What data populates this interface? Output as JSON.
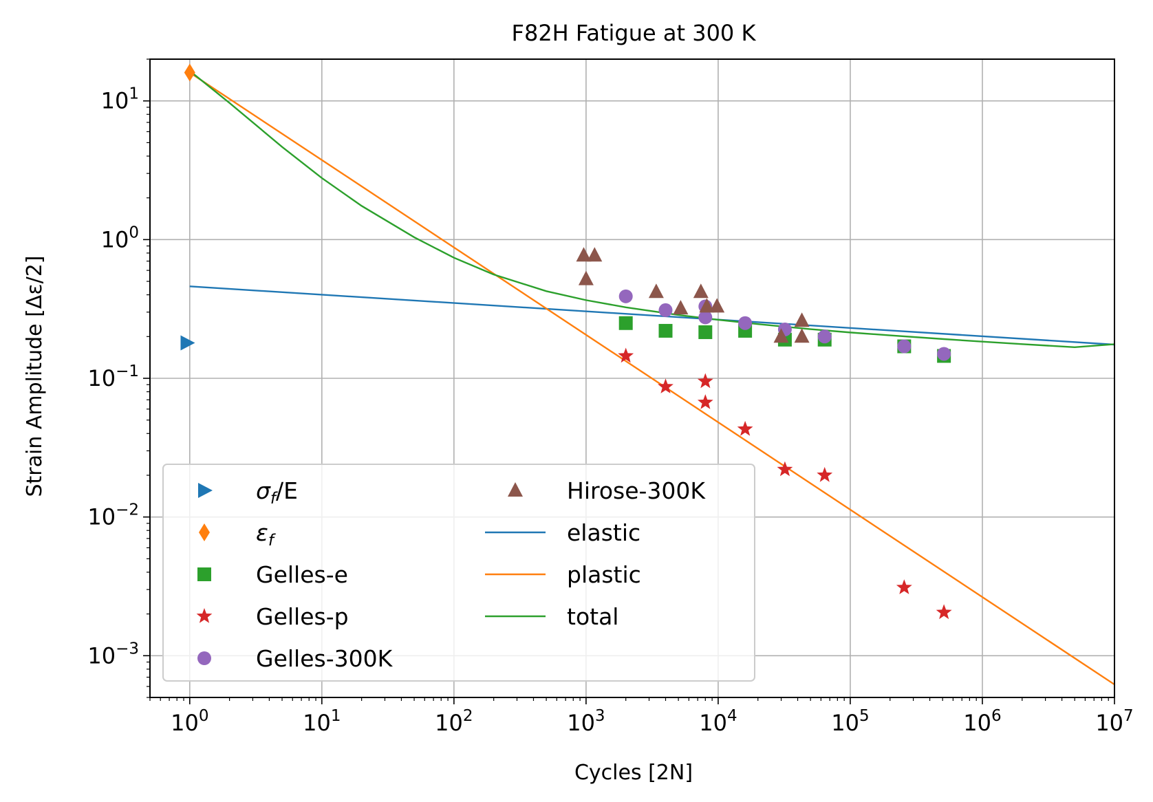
{
  "chart_data": {
    "type": "scatter",
    "title": "F82H Fatigue at 300 K",
    "xlabel": "Cycles [2N]",
    "ylabel": "Strain Amplitude [Δε/2]",
    "xscale": "log",
    "yscale": "log",
    "xlim": [
      0.5,
      10000000
    ],
    "ylim": [
      0.0005,
      20
    ],
    "grid": true,
    "legend_position": "lower-left",
    "x_ticks": [
      {
        "value": 1,
        "base": "10",
        "exp": "0"
      },
      {
        "value": 10,
        "base": "10",
        "exp": "1"
      },
      {
        "value": 100,
        "base": "10",
        "exp": "2"
      },
      {
        "value": 1000,
        "base": "10",
        "exp": "3"
      },
      {
        "value": 10000,
        "base": "10",
        "exp": "4"
      },
      {
        "value": 100000,
        "base": "10",
        "exp": "5"
      },
      {
        "value": 1000000,
        "base": "10",
        "exp": "6"
      },
      {
        "value": 10000000,
        "base": "10",
        "exp": "7"
      }
    ],
    "y_ticks": [
      {
        "value": 0.001,
        "base": "10",
        "exp": "−3"
      },
      {
        "value": 0.01,
        "base": "10",
        "exp": "−2"
      },
      {
        "value": 0.1,
        "base": "10",
        "exp": "−1"
      },
      {
        "value": 1,
        "base": "10",
        "exp": "0"
      },
      {
        "value": 10,
        "base": "10",
        "exp": "1"
      }
    ],
    "series": [
      {
        "name": "σf/E",
        "label_main": "σ",
        "label_sub": "f",
        "label_rest": "/E",
        "kind": "scatter",
        "marker": "triangle-right",
        "color": "#1f77b4",
        "x": [
          0.95
        ],
        "y": [
          0.18
        ]
      },
      {
        "name": "εf",
        "label_main": "ε",
        "label_sub": "f",
        "label_rest": "",
        "kind": "scatter",
        "marker": "diamond",
        "color": "#ff7f0e",
        "x": [
          1
        ],
        "y": [
          16
        ]
      },
      {
        "name": "Gelles-e",
        "kind": "scatter",
        "marker": "square",
        "color": "#2ca02c",
        "x": [
          2000,
          4000,
          8000,
          16000,
          32000,
          64000,
          256000,
          512000
        ],
        "y": [
          0.25,
          0.22,
          0.215,
          0.22,
          0.19,
          0.19,
          0.17,
          0.145
        ]
      },
      {
        "name": "Gelles-p",
        "kind": "scatter",
        "marker": "star",
        "color": "#d62728",
        "x": [
          2000,
          4000,
          8000,
          8000,
          16000,
          32000,
          64000,
          256000,
          512000
        ],
        "y": [
          0.145,
          0.087,
          0.095,
          0.067,
          0.043,
          0.022,
          0.02,
          0.0031,
          0.00205
        ]
      },
      {
        "name": "Gelles-300K",
        "kind": "scatter",
        "marker": "circle",
        "color": "#9467bd",
        "x": [
          2000,
          4000,
          8000,
          8000,
          16000,
          32000,
          64000,
          256000,
          512000
        ],
        "y": [
          0.39,
          0.31,
          0.33,
          0.275,
          0.25,
          0.225,
          0.2,
          0.17,
          0.15
        ]
      },
      {
        "name": "Hirose-300K",
        "kind": "scatter",
        "marker": "triangle-up",
        "color": "#8c564b",
        "x": [
          960,
          1160,
          1000,
          3400,
          5200,
          7400,
          8200,
          9800,
          30000,
          43000,
          43000
        ],
        "y": [
          0.77,
          0.77,
          0.52,
          0.42,
          0.32,
          0.42,
          0.33,
          0.33,
          0.2,
          0.2,
          0.26
        ]
      },
      {
        "name": "elastic",
        "kind": "line",
        "color": "#1f77b4",
        "x": [
          1,
          10000000
        ],
        "y": [
          0.46,
          0.175
        ]
      },
      {
        "name": "plastic",
        "kind": "line",
        "color": "#ff7f0e",
        "x": [
          1,
          10000000
        ],
        "y": [
          16,
          0.00062
        ]
      },
      {
        "name": "total",
        "kind": "line",
        "color": "#2ca02c",
        "x": [
          1,
          2,
          5,
          10,
          20,
          50,
          100,
          200,
          500,
          1000,
          2000,
          5000,
          10000,
          20000,
          50000,
          100000,
          200000,
          500000,
          1000000,
          2000000,
          5000000,
          10000000
        ],
        "y": [
          16.46,
          9.67,
          4.66,
          2.78,
          1.75,
          1.04,
          0.74,
          0.56,
          0.425,
          0.366,
          0.325,
          0.286,
          0.264,
          0.246,
          0.226,
          0.214,
          0.204,
          0.192,
          0.1838,
          0.1764,
          0.1675,
          0.1761
        ]
      }
    ]
  }
}
